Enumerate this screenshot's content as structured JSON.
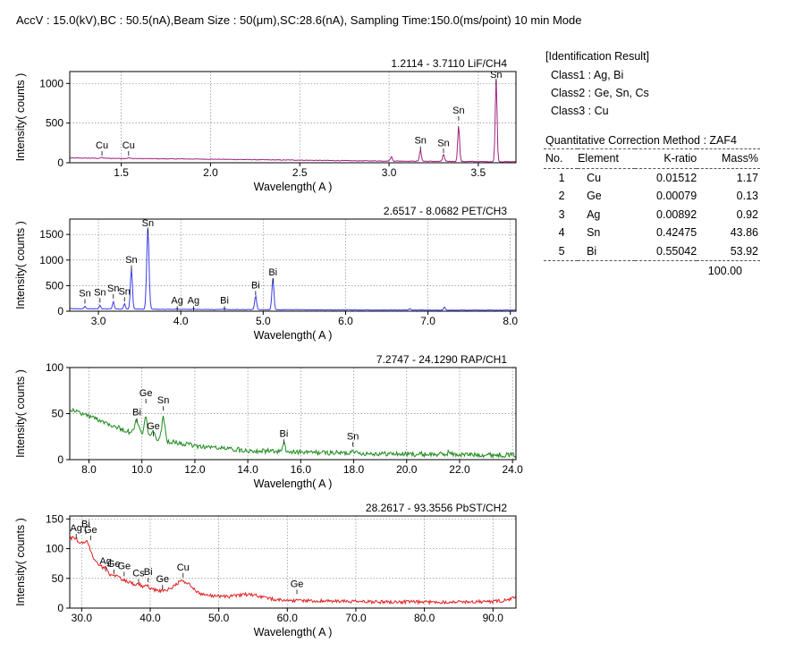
{
  "header": {
    "conditions": "AccV : 15.0(kV),BC : 50.5(nA),Beam Size : 50(μm),SC:28.6(nA), Sampling Time:150.0(ms/point) 10 min Mode"
  },
  "identification": {
    "title": "[Identification Result]",
    "classes": [
      "Class1 : Ag, Bi",
      "Class2 : Ge, Sn, Cs",
      "Class3 : Cu"
    ]
  },
  "quantitative": {
    "method": "Quantitative Correction Method : ZAF4",
    "columns": [
      "No.",
      "Element",
      "K-ratio",
      "Mass%"
    ],
    "rows": [
      {
        "no": "1",
        "element": "Cu",
        "k_ratio": "0.01512",
        "mass": "1.17"
      },
      {
        "no": "2",
        "element": "Ge",
        "k_ratio": "0.00079",
        "mass": "0.13"
      },
      {
        "no": "3",
        "element": "Ag",
        "k_ratio": "0.00892",
        "mass": "0.92"
      },
      {
        "no": "4",
        "element": "Sn",
        "k_ratio": "0.42475",
        "mass": "43.86"
      },
      {
        "no": "5",
        "element": "Bi",
        "k_ratio": "0.55042",
        "mass": "53.92"
      }
    ],
    "total": "100.00"
  },
  "chart_data": [
    {
      "type": "line",
      "range_label": "1.2114 - 3.7110  LiF/CH4",
      "xlabel": "Wavelength( A )",
      "ylabel": "Intensity( counts )",
      "color": "#a0207f",
      "xlim": [
        1.2114,
        3.711
      ],
      "ylim": [
        0,
        1150
      ],
      "xticks": [
        1.5,
        2.0,
        2.5,
        3.0,
        3.5
      ],
      "xtick_labels": [
        "1.5",
        "2.0",
        "2.5",
        "3.0",
        "3.5"
      ],
      "yticks": [
        0,
        500,
        1000
      ],
      "ytick_labels": [
        "0",
        "500",
        "1000"
      ],
      "baseline": [
        [
          1.2114,
          60
        ],
        [
          2.0,
          45
        ],
        [
          2.8,
          25
        ],
        [
          3.711,
          12
        ]
      ],
      "noise": 4,
      "peaks": [
        {
          "x": 1.392,
          "h": 12,
          "w": 0.005
        },
        {
          "x": 1.541,
          "h": 10,
          "w": 0.005
        },
        {
          "x": 3.013,
          "h": 55,
          "w": 0.005
        },
        {
          "x": 3.176,
          "h": 145,
          "w": 0.005
        },
        {
          "x": 3.305,
          "h": 90,
          "w": 0.005
        },
        {
          "x": 3.39,
          "h": 460,
          "w": 0.005
        },
        {
          "x": 3.6,
          "h": 1060,
          "w": 0.005
        }
      ],
      "labels": [
        {
          "text": "Cu",
          "x": 1.392,
          "y": 170
        },
        {
          "text": "Cu",
          "x": 1.541,
          "y": 170
        },
        {
          "text": "Sn",
          "x": 3.176,
          "y": 230
        },
        {
          "text": "Sn",
          "x": 3.305,
          "y": 200
        },
        {
          "text": "Sn",
          "x": 3.39,
          "y": 610
        },
        {
          "text": "Sn",
          "x": 3.6,
          "y": 1060
        }
      ]
    },
    {
      "type": "line",
      "range_label": "2.6517 - 8.0682  PET/CH3",
      "xlabel": "Wavelength( A )",
      "ylabel": "Intensity( counts )",
      "color": "#3a3ae8",
      "xlim": [
        2.6517,
        8.0682
      ],
      "ylim": [
        0,
        1800
      ],
      "xticks": [
        3,
        4,
        5,
        6,
        7,
        8
      ],
      "xtick_labels": [
        "3.0",
        "4.0",
        "5.0",
        "6.0",
        "7.0",
        "8.0"
      ],
      "yticks": [
        0,
        500,
        1000,
        1500
      ],
      "ytick_labels": [
        "0",
        "500",
        "1000",
        "1500"
      ],
      "baseline": [
        [
          2.6517,
          50
        ],
        [
          4.0,
          35
        ],
        [
          6.0,
          25
        ],
        [
          8.0682,
          20
        ]
      ],
      "noise": 5,
      "peaks": [
        {
          "x": 2.836,
          "h": 50,
          "w": 0.01
        },
        {
          "x": 3.019,
          "h": 70,
          "w": 0.01
        },
        {
          "x": 3.181,
          "h": 150,
          "w": 0.01
        },
        {
          "x": 3.316,
          "h": 110,
          "w": 0.01
        },
        {
          "x": 3.4,
          "h": 800,
          "w": 0.012
        },
        {
          "x": 3.6,
          "h": 1600,
          "w": 0.014
        },
        {
          "x": 3.956,
          "h": 15,
          "w": 0.01
        },
        {
          "x": 4.154,
          "h": 15,
          "w": 0.01
        },
        {
          "x": 4.53,
          "h": 20,
          "w": 0.01
        },
        {
          "x": 4.908,
          "h": 270,
          "w": 0.012
        },
        {
          "x": 5.118,
          "h": 620,
          "w": 0.012
        },
        {
          "x": 6.78,
          "h": 25,
          "w": 0.01
        },
        {
          "x": 7.2,
          "h": 55,
          "w": 0.01
        }
      ],
      "labels": [
        {
          "text": "Sn",
          "x": 2.836,
          "y": 270
        },
        {
          "text": "Sn",
          "x": 3.019,
          "y": 290
        },
        {
          "text": "Sn",
          "x": 3.181,
          "y": 370
        },
        {
          "text": "Sn",
          "x": 3.316,
          "y": 310
        },
        {
          "text": "Sn",
          "x": 3.4,
          "y": 930
        },
        {
          "text": "Sn",
          "x": 3.6,
          "y": 1640
        },
        {
          "text": "Ag",
          "x": 3.956,
          "y": 130
        },
        {
          "text": "Ag",
          "x": 4.154,
          "y": 130
        },
        {
          "text": "Bi",
          "x": 4.53,
          "y": 130
        },
        {
          "text": "Bi",
          "x": 4.908,
          "y": 430
        },
        {
          "text": "Bi",
          "x": 5.118,
          "y": 680
        }
      ]
    },
    {
      "type": "line",
      "range_label": "7.2747 - 24.1290  RAP/CH1",
      "xlabel": "Wavelength( A )",
      "ylabel": "Intensity( counts )",
      "color": "#1e8a1e",
      "xlim": [
        7.2747,
        24.129
      ],
      "ylim": [
        0,
        100
      ],
      "xticks": [
        8,
        10,
        12,
        14,
        16,
        18,
        20,
        22,
        24
      ],
      "xtick_labels": [
        "8.0",
        "10.0",
        "12.0",
        "14.0",
        "16.0",
        "18.0",
        "20.0",
        "22.0",
        "24.0"
      ],
      "yticks": [
        0,
        50,
        100
      ],
      "ytick_labels": [
        "0",
        "50",
        "100"
      ],
      "baseline": [
        [
          7.2747,
          55
        ],
        [
          8.5,
          42
        ],
        [
          9.5,
          30
        ],
        [
          10.5,
          22
        ],
        [
          12.0,
          15
        ],
        [
          14.0,
          10
        ],
        [
          16.0,
          8
        ],
        [
          20.0,
          6
        ],
        [
          24.129,
          5
        ]
      ],
      "noise": 2.6,
      "peaks": [
        {
          "x": 9.81,
          "h": 15,
          "w": 0.08
        },
        {
          "x": 10.15,
          "h": 20,
          "w": 0.06
        },
        {
          "x": 10.43,
          "h": 8,
          "w": 0.05
        },
        {
          "x": 10.81,
          "h": 25,
          "w": 0.06
        },
        {
          "x": 15.36,
          "h": 8,
          "w": 0.05
        },
        {
          "x": 17.97,
          "h": 5,
          "w": 0.05
        },
        {
          "x": 21.6,
          "h": 3,
          "w": 0.05
        }
      ],
      "labels": [
        {
          "text": "Bi",
          "x": 9.81,
          "y": 47
        },
        {
          "text": "Ge",
          "x": 10.15,
          "y": 68
        },
        {
          "text": "Ge",
          "x": 10.43,
          "y": 32
        },
        {
          "text": "Sn",
          "x": 10.81,
          "y": 60
        },
        {
          "text": "Bi",
          "x": 15.36,
          "y": 24
        },
        {
          "text": "Sn",
          "x": 17.97,
          "y": 21
        }
      ]
    },
    {
      "type": "line",
      "range_label": "28.2617 - 93.3556  PbST/CH2",
      "xlabel": "Wavelength( A )",
      "ylabel": "Intensity( counts )",
      "color": "#e02020",
      "xlim": [
        28.2617,
        93.3556
      ],
      "ylim": [
        0,
        155
      ],
      "xticks": [
        30,
        40,
        50,
        60,
        70,
        80,
        90
      ],
      "xtick_labels": [
        "30.0",
        "40.0",
        "50.0",
        "60.0",
        "70.0",
        "80.0",
        "90.0"
      ],
      "yticks": [
        0,
        50,
        100,
        150
      ],
      "ytick_labels": [
        "0",
        "50",
        "100",
        "150"
      ],
      "baseline": [
        [
          28.2617,
          118
        ],
        [
          30.0,
          108
        ],
        [
          32.0,
          80
        ],
        [
          34.0,
          56
        ],
        [
          36.0,
          48
        ],
        [
          38.0,
          38
        ],
        [
          40.0,
          32
        ],
        [
          42.0,
          28
        ],
        [
          46.0,
          24
        ],
        [
          50.0,
          20
        ],
        [
          60.0,
          13
        ],
        [
          70.0,
          11
        ],
        [
          80.0,
          10
        ],
        [
          90.0,
          11
        ],
        [
          92.0,
          13
        ],
        [
          93.3556,
          18
        ]
      ],
      "noise": 2.8,
      "peaks": [
        {
          "x": 29.0,
          "h": 5,
          "w": 0.3
        },
        {
          "x": 30.8,
          "h": 15,
          "w": 0.4
        },
        {
          "x": 33.6,
          "h": 6,
          "w": 0.3
        },
        {
          "x": 35.2,
          "h": 4,
          "w": 0.3
        },
        {
          "x": 38.3,
          "h": 4,
          "w": 0.3
        },
        {
          "x": 39.6,
          "h": 4,
          "w": 0.3
        },
        {
          "x": 44.8,
          "h": 20,
          "w": 1.2
        },
        {
          "x": 54.5,
          "h": 6,
          "w": 1.5
        }
      ],
      "labels": [
        {
          "text": "Ag",
          "x": 29.2,
          "y": 128
        },
        {
          "text": "Bi",
          "x": 30.6,
          "y": 135
        },
        {
          "text": "Ge",
          "x": 31.3,
          "y": 125
        },
        {
          "text": "Ag",
          "x": 33.5,
          "y": 72
        },
        {
          "text": "Ge",
          "x": 34.7,
          "y": 68
        },
        {
          "text": "Ge",
          "x": 36.2,
          "y": 64
        },
        {
          "text": "Cs",
          "x": 38.3,
          "y": 52
        },
        {
          "text": "Bi",
          "x": 39.7,
          "y": 54
        },
        {
          "text": "Ge",
          "x": 41.8,
          "y": 42
        },
        {
          "text": "Cu",
          "x": 44.8,
          "y": 62
        },
        {
          "text": "Ge",
          "x": 61.4,
          "y": 34
        }
      ]
    }
  ]
}
